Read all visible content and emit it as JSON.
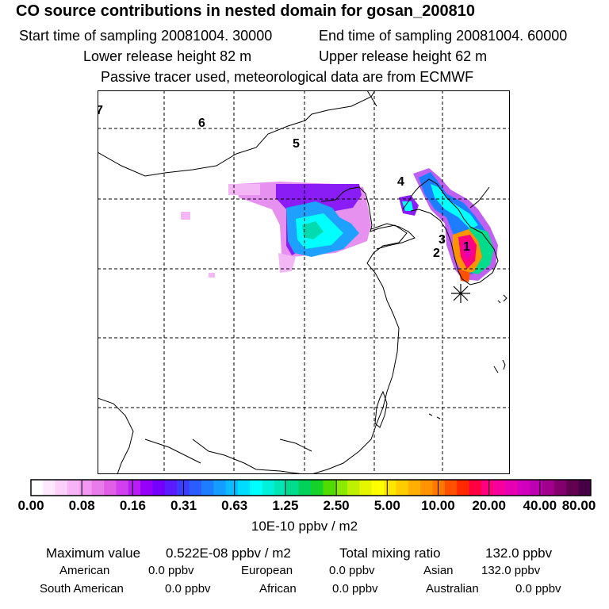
{
  "header": {
    "title": "CO  source contributions in nested domain for gosan_200810",
    "start_time": "Start time of sampling 20081004. 30000",
    "end_time": "End time of sampling 20081004. 60000",
    "lower_release": "Lower release height   82 m",
    "upper_release": "Upper release height   62 m",
    "tracer_note": "Passive tracer used, meteorological data are from ECMWF"
  },
  "map": {
    "region_labels": [
      "7",
      "6",
      "5",
      "4",
      "3",
      "2",
      "1"
    ],
    "receptor_marker": "asterisk-icon"
  },
  "colorbar": {
    "tick_labels": [
      "0.00",
      "0.08",
      "0.16",
      "0.31",
      "0.63",
      "1.25",
      "2.50",
      "5.00",
      "10.00",
      "20.00",
      "40.00",
      "80.00"
    ],
    "unit": "10E-10 ppbv / m2",
    "colors": [
      "#ffffff",
      "#fde8fd",
      "#fbd0fb",
      "#f7b5f7",
      "#f198f1",
      "#ea7cea",
      "#e05fe6",
      "#d040ee",
      "#b81ef4",
      "#9700f8",
      "#7400fb",
      "#5a1cfd",
      "#3c3cff",
      "#2a5cff",
      "#1e7cff",
      "#149cff",
      "#0abcff",
      "#00dcff",
      "#00ffff",
      "#00f0dc",
      "#00e6b4",
      "#00dc8c",
      "#00d25a",
      "#14d228",
      "#50dc00",
      "#8cea00",
      "#bef000",
      "#e6f500",
      "#ffff00",
      "#ffe600",
      "#ffcc00",
      "#ffb000",
      "#ff9400",
      "#ff7800",
      "#ff5000",
      "#ff2800",
      "#ff0040",
      "#ff0080",
      "#f5009c",
      "#e600b4",
      "#d200be",
      "#be00b4",
      "#a0008c",
      "#82006e",
      "#640050",
      "#460046"
    ]
  },
  "stats": {
    "max_label": "Maximum value",
    "max_value": "0.522E-08 ppbv / m2",
    "total_label": "Total mixing ratio",
    "total_value": "132.0 ppbv",
    "sources": [
      {
        "name": "American",
        "value": "0.0 ppbv"
      },
      {
        "name": "European",
        "value": "0.0 ppbv"
      },
      {
        "name": "Asian",
        "value": "132.0 ppbv"
      },
      {
        "name": "South American",
        "value": "0.0 ppbv"
      },
      {
        "name": "African",
        "value": "0.0 ppbv"
      },
      {
        "name": "Australian",
        "value": "0.0 ppbv"
      }
    ]
  }
}
